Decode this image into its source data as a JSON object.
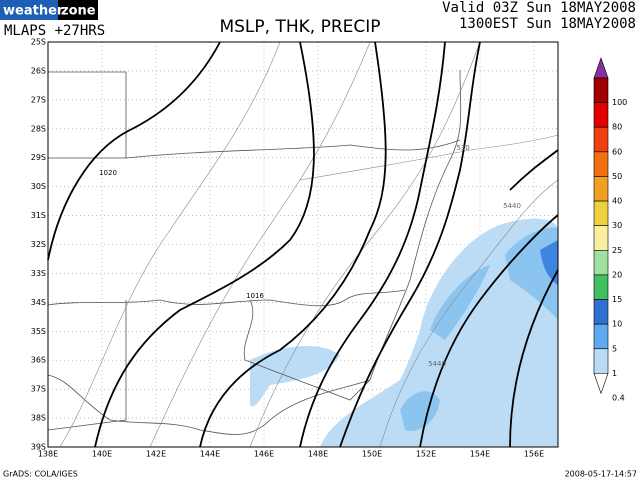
{
  "header": {
    "logo": [
      "weather",
      "zone"
    ],
    "model": "MLAPS +27HRS",
    "title": "MSLP, THK, PRECIP",
    "valid": [
      "Valid 03Z Sun 18MAY2008",
      "1300EST Sun 18MAY2008"
    ]
  },
  "latitudes": [
    "25S",
    "26S",
    "27S",
    "28S",
    "29S",
    "30S",
    "31S",
    "32S",
    "33S",
    "34S",
    "35S",
    "36S",
    "37S",
    "38S",
    "39S"
  ],
  "longitudes": [
    "138E",
    "140E",
    "142E",
    "144E",
    "146E",
    "148E",
    "150E",
    "152E",
    "154E",
    "156E"
  ],
  "contour_labels": [
    "1020",
    "1016",
    "530",
    "5440",
    "5440"
  ],
  "colorbar": [
    100,
    80,
    60,
    50,
    40,
    30,
    25,
    20,
    15,
    10,
    5,
    1,
    0.4
  ],
  "footer": {
    "credit": "GrADS: COLA/IGES",
    "timestamp": "2008-05-17-14:57"
  }
}
